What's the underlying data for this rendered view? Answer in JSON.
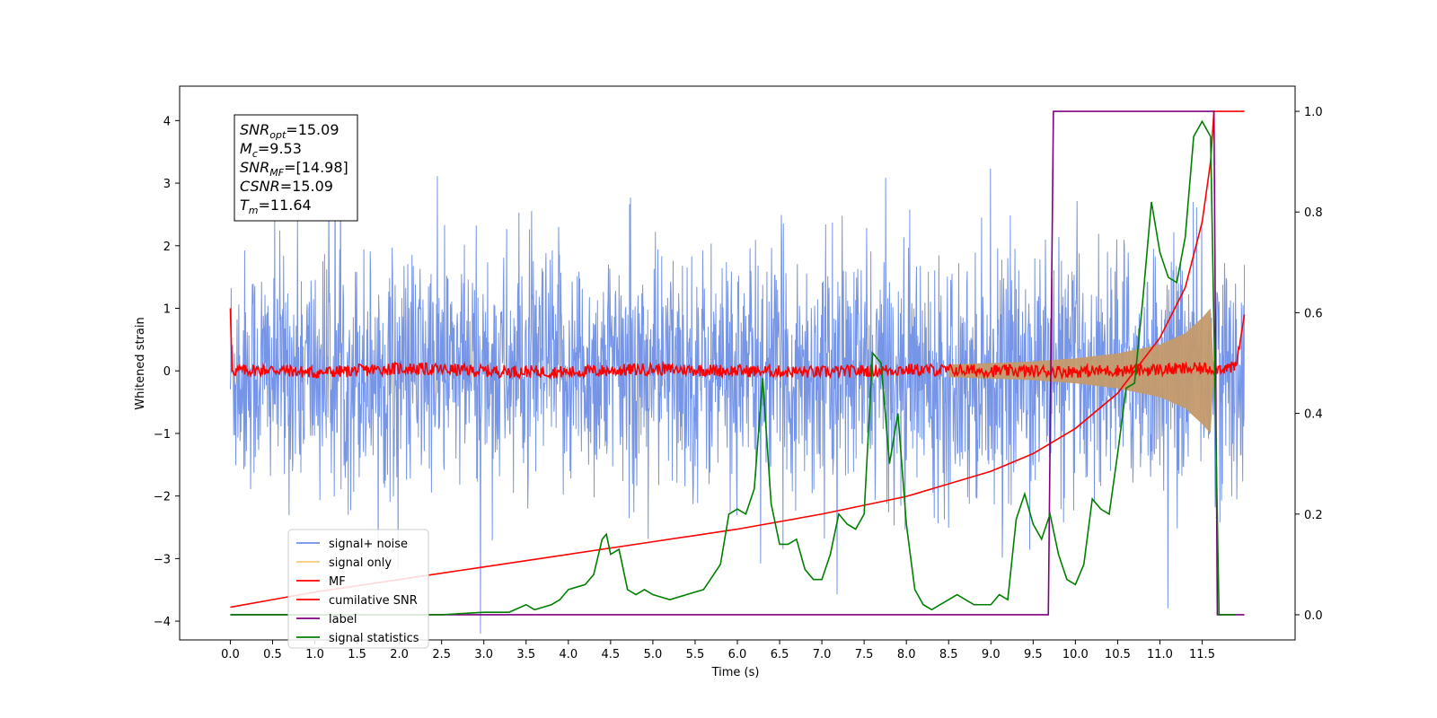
{
  "chart_data": {
    "type": "line",
    "title": "",
    "xlabel": "Time (s)",
    "ylabel": "Whitened strain",
    "y2label": "",
    "xlim": [
      -0.6,
      12.6
    ],
    "ylim": [
      -4.3,
      4.55
    ],
    "y2lim": [
      -0.05,
      1.05
    ],
    "x_ticks": [
      0.0,
      0.5,
      1.0,
      1.5,
      2.0,
      2.5,
      3.0,
      3.5,
      4.0,
      4.5,
      5.0,
      5.5,
      6.0,
      6.5,
      7.0,
      7.5,
      8.0,
      8.5,
      9.0,
      9.5,
      10.0,
      10.5,
      11.0,
      11.5
    ],
    "x_tick_labels": [
      "0.0",
      "0.5",
      "1.0",
      "1.5",
      "2.0",
      "2.5",
      "3.0",
      "3.5",
      "4.0",
      "4.5",
      "5.0",
      "5.5",
      "6.0",
      "6.5",
      "7.0",
      "7.5",
      "8.0",
      "8.5",
      "9.0",
      "9.5",
      "10.0",
      "10.5",
      "11.0",
      "11.5"
    ],
    "y_ticks": [
      -4,
      -3,
      -2,
      -1,
      0,
      1,
      2,
      3,
      4
    ],
    "y_tick_labels": [
      "−4",
      "−3",
      "−2",
      "−1",
      "0",
      "1",
      "2",
      "3",
      "4"
    ],
    "y2_ticks": [
      0.0,
      0.2,
      0.4,
      0.6,
      0.8,
      1.0
    ],
    "y2_tick_labels": [
      "0.0",
      "0.2",
      "0.4",
      "0.6",
      "0.8",
      "1.0"
    ],
    "legend_position": "lower-left",
    "grid": false,
    "annotation": {
      "lines": [
        {
          "sym": "SNR",
          "sub": "opt",
          "value": "=15.09"
        },
        {
          "sym": "M",
          "sub": "c",
          "value": "=9.53"
        },
        {
          "sym": "SNR",
          "sub": "MF",
          "value": "=[14.98]"
        },
        {
          "sym": "CSNR",
          "sub": "",
          "value": "=15.09"
        },
        {
          "sym": "T",
          "sub": "m",
          "value": "=11.64"
        }
      ]
    },
    "series": [
      {
        "name": "signal+ noise",
        "axis": "left",
        "color": "#6f8fe6",
        "description_range": "noise band approx. -2.3 to 2.3 with spikes to about ±4",
        "envelope_x": [
          0.0,
          12.0
        ],
        "envelope_y": [
          -2.3,
          2.3
        ]
      },
      {
        "name": "signal only",
        "axis": "left",
        "color": "#f5c97a",
        "chirp_x": [
          8.5,
          9.5,
          10.0,
          10.5,
          11.0,
          11.3,
          11.5,
          11.6,
          11.64
        ],
        "chirp_amplitude": [
          0.1,
          0.15,
          0.2,
          0.28,
          0.42,
          0.6,
          0.85,
          1.0,
          0.0
        ]
      },
      {
        "name": "MF",
        "axis": "left",
        "color": "#ff0000",
        "x": [
          0.0,
          0.02,
          0.5,
          1.0,
          2.0,
          3.0,
          4.0,
          5.0,
          6.0,
          7.0,
          8.0,
          9.0,
          10.0,
          11.0,
          11.9,
          12.0
        ],
        "y": [
          1.0,
          0.0,
          0.02,
          -0.03,
          0.04,
          0.0,
          -0.02,
          0.03,
          0.0,
          -0.02,
          0.02,
          0.0,
          -0.01,
          0.02,
          0.05,
          0.9
        ]
      },
      {
        "name": "cumilative SNR",
        "axis": "right",
        "color": "#ff0000",
        "x": [
          0.0,
          0.5,
          1.0,
          2.0,
          3.0,
          4.0,
          5.0,
          6.0,
          7.0,
          8.0,
          8.5,
          9.0,
          9.5,
          10.0,
          10.5,
          11.0,
          11.3,
          11.5,
          11.6,
          11.64,
          12.0
        ],
        "y": [
          0.015,
          0.03,
          0.045,
          0.07,
          0.095,
          0.12,
          0.145,
          0.17,
          0.2,
          0.235,
          0.26,
          0.285,
          0.32,
          0.37,
          0.44,
          0.55,
          0.65,
          0.78,
          0.9,
          1.0,
          1.0
        ]
      },
      {
        "name": "label",
        "axis": "right",
        "color": "#800080",
        "x": [
          0.0,
          9.68,
          9.74,
          11.64,
          11.68,
          12.0
        ],
        "y": [
          0.0,
          0.0,
          1.0,
          1.0,
          0.0,
          0.0
        ]
      },
      {
        "name": "signal statistics",
        "axis": "right",
        "color": "#008000",
        "x": [
          0.0,
          0.5,
          1.0,
          1.5,
          2.0,
          2.5,
          3.0,
          3.3,
          3.5,
          3.6,
          3.8,
          3.9,
          4.0,
          4.2,
          4.3,
          4.4,
          4.45,
          4.5,
          4.6,
          4.7,
          4.8,
          4.9,
          5.0,
          5.2,
          5.4,
          5.6,
          5.8,
          5.9,
          6.0,
          6.1,
          6.2,
          6.3,
          6.4,
          6.5,
          6.6,
          6.7,
          6.8,
          6.9,
          7.0,
          7.1,
          7.2,
          7.3,
          7.4,
          7.5,
          7.6,
          7.7,
          7.8,
          7.9,
          8.0,
          8.1,
          8.2,
          8.3,
          8.4,
          8.5,
          8.6,
          8.7,
          8.8,
          8.9,
          9.0,
          9.1,
          9.2,
          9.3,
          9.4,
          9.5,
          9.6,
          9.7,
          9.8,
          9.9,
          10.0,
          10.1,
          10.2,
          10.3,
          10.4,
          10.5,
          10.6,
          10.7,
          10.8,
          10.9,
          11.0,
          11.1,
          11.2,
          11.3,
          11.4,
          11.5,
          11.6,
          11.7,
          11.8,
          11.9
        ],
        "y": [
          0.0,
          0.0,
          0.0,
          0.0,
          0.0,
          0.0,
          0.005,
          0.005,
          0.02,
          0.01,
          0.02,
          0.03,
          0.05,
          0.06,
          0.08,
          0.15,
          0.16,
          0.12,
          0.13,
          0.05,
          0.04,
          0.05,
          0.04,
          0.03,
          0.04,
          0.05,
          0.1,
          0.2,
          0.21,
          0.2,
          0.25,
          0.47,
          0.22,
          0.14,
          0.14,
          0.15,
          0.09,
          0.07,
          0.07,
          0.12,
          0.2,
          0.18,
          0.17,
          0.2,
          0.52,
          0.5,
          0.3,
          0.4,
          0.18,
          0.05,
          0.02,
          0.01,
          0.02,
          0.03,
          0.04,
          0.03,
          0.02,
          0.02,
          0.02,
          0.04,
          0.03,
          0.19,
          0.24,
          0.18,
          0.15,
          0.2,
          0.12,
          0.07,
          0.06,
          0.1,
          0.23,
          0.21,
          0.2,
          0.32,
          0.45,
          0.46,
          0.63,
          0.82,
          0.72,
          0.67,
          0.66,
          0.75,
          0.95,
          0.98,
          0.95,
          0.0,
          0.0,
          0.0
        ]
      }
    ]
  }
}
